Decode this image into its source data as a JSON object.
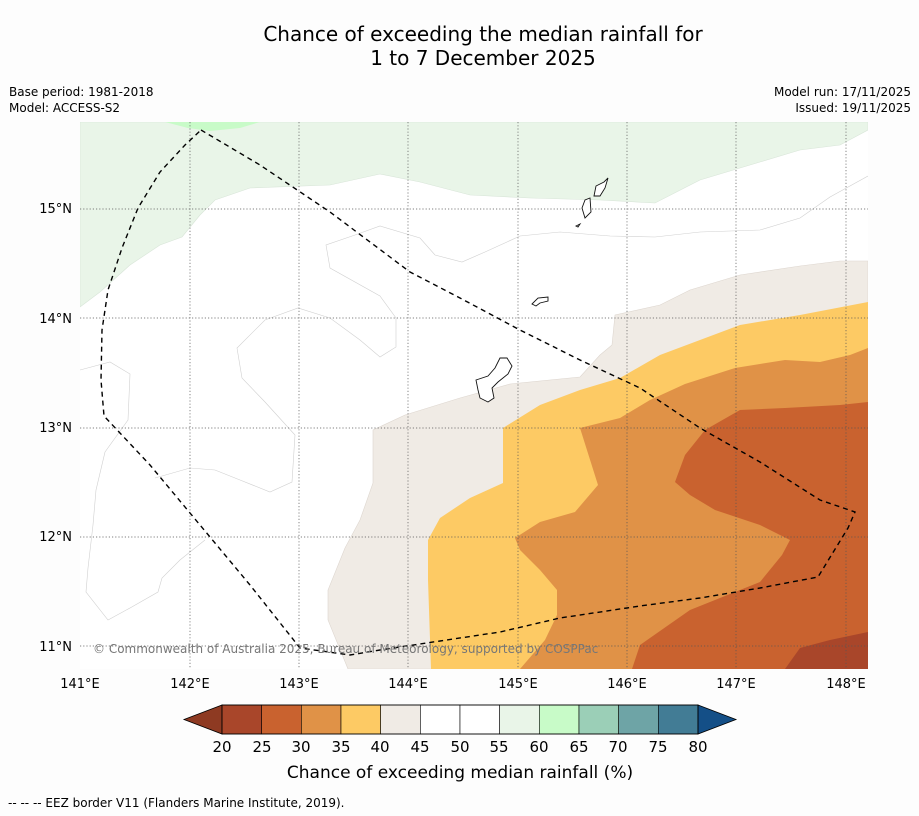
{
  "title": {
    "line1": "Chance of exceeding the median rainfall for",
    "line2": "1 to 7 December 2025"
  },
  "meta": {
    "base_period": "Base period: 1981-2018",
    "model": "Model: ACCESS-S2",
    "model_run": "Model run: 17/11/2025",
    "issued": "Issued: 19/11/2025"
  },
  "map": {
    "lon_labels": [
      "141°E",
      "142°E",
      "143°E",
      "144°E",
      "145°E",
      "146°E",
      "147°E",
      "148°E"
    ],
    "lat_labels": [
      "15°N",
      "14°N",
      "13°N",
      "12°N",
      "11°N"
    ],
    "copyright": "© Commonwealth of Australia 2025, Bureau of Meteorology, supported by COSPPac"
  },
  "colorbar": {
    "ticks": [
      "20",
      "25",
      "30",
      "35",
      "40",
      "45",
      "50",
      "55",
      "60",
      "65",
      "70",
      "75",
      "80"
    ],
    "colors": [
      "#a9462a",
      "#c9622f",
      "#e09247",
      "#fdca64",
      "#f0ebe5",
      "#ffffff",
      "#ffffff",
      "#e9f5e8",
      "#c8fbc8",
      "#9bcfb7",
      "#6ea4a6",
      "#427c95",
      "#144f87"
    ],
    "label": "Chance of exceeding median rainfall (%)"
  },
  "footnote": "--  --  -- EEZ border V11 (Flanders Marine Institute, 2019)."
}
